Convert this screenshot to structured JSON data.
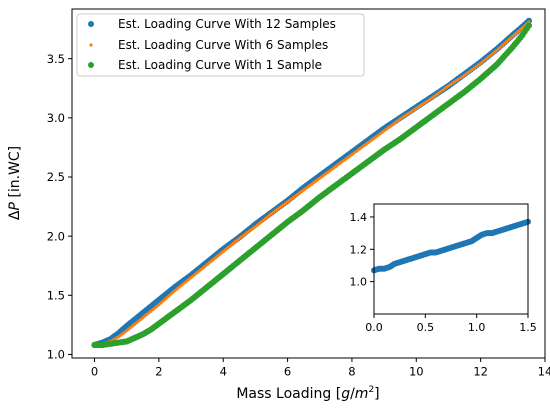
{
  "chart_data": [
    {
      "type": "scatter",
      "title": "",
      "xlabel": "Mass Loading [g/m²]",
      "xlabel_parts": {
        "text": "Mass Loading [",
        "math_g": "g",
        "slash": "/",
        "math_m": "m",
        "sup": "2",
        "close": "]"
      },
      "ylabel": "ΔP [in.WC]",
      "ylabel_parts": {
        "delta": "Δ",
        "math_p": "P",
        "rest": " [in.WC]"
      },
      "xlim": [
        -0.7,
        14.0
      ],
      "ylim": [
        0.97,
        3.92
      ],
      "xticks": [
        0,
        2,
        4,
        6,
        8,
        10,
        12,
        14
      ],
      "yticks": [
        1.0,
        1.5,
        2.0,
        2.5,
        3.0,
        3.5
      ],
      "xtick_labels": [
        "0",
        "2",
        "4",
        "6",
        "8",
        "10",
        "12",
        "14"
      ],
      "ytick_labels": [
        "1.0",
        "1.5",
        "2.0",
        "2.5",
        "3.0",
        "3.5"
      ],
      "grid": false,
      "legend_placement": "top-left",
      "series": [
        {
          "name": "Est. Loading Curve With 12 Samples",
          "color": "#1f77b4",
          "marker_size": "large",
          "x": [
            0,
            0.25,
            0.5,
            0.75,
            1.0,
            1.5,
            2.0,
            2.5,
            3.0,
            3.5,
            4.0,
            4.5,
            5.0,
            5.5,
            6.0,
            6.5,
            7.0,
            7.5,
            8.0,
            8.5,
            9.0,
            9.5,
            10.0,
            10.5,
            11.0,
            11.5,
            12.0,
            12.5,
            13.0,
            13.3,
            13.5
          ],
          "y": [
            1.08,
            1.1,
            1.13,
            1.18,
            1.24,
            1.35,
            1.46,
            1.57,
            1.67,
            1.78,
            1.89,
            1.99,
            2.1,
            2.2,
            2.3,
            2.41,
            2.51,
            2.61,
            2.71,
            2.81,
            2.91,
            3.0,
            3.09,
            3.18,
            3.27,
            3.37,
            3.47,
            3.58,
            3.7,
            3.77,
            3.82
          ]
        },
        {
          "name": "Est. Loading Curve With 6 Samples",
          "color": "#ff7f0e",
          "marker_size": "small",
          "x": [
            0,
            0.25,
            0.5,
            0.75,
            1.0,
            1.5,
            2.0,
            2.5,
            3.0,
            3.5,
            4.0,
            4.5,
            5.0,
            5.5,
            6.0,
            6.5,
            7.0,
            7.5,
            8.0,
            8.5,
            9.0,
            9.5,
            10.0,
            10.5,
            11.0,
            11.5,
            12.0,
            12.5,
            13.0,
            13.3,
            13.5
          ],
          "y": [
            1.08,
            1.09,
            1.11,
            1.15,
            1.2,
            1.31,
            1.42,
            1.54,
            1.65,
            1.76,
            1.87,
            1.98,
            2.08,
            2.19,
            2.29,
            2.39,
            2.49,
            2.59,
            2.69,
            2.79,
            2.89,
            2.99,
            3.08,
            3.17,
            3.27,
            3.36,
            3.46,
            3.57,
            3.69,
            3.76,
            3.81
          ]
        },
        {
          "name": "Est. Loading Curve With 1 Sample",
          "color": "#2ca02c",
          "marker_size": "large",
          "x": [
            0,
            0.25,
            0.5,
            0.75,
            1.0,
            1.25,
            1.5,
            1.75,
            2.0,
            2.25,
            2.5,
            3.0,
            3.5,
            4.0,
            4.5,
            5.0,
            5.5,
            6.0,
            6.5,
            7.0,
            7.5,
            8.0,
            8.5,
            9.0,
            9.5,
            10.0,
            10.5,
            11.0,
            11.5,
            12.0,
            12.5,
            13.0,
            13.3,
            13.5
          ],
          "y": [
            1.08,
            1.08,
            1.09,
            1.1,
            1.11,
            1.14,
            1.17,
            1.21,
            1.26,
            1.31,
            1.36,
            1.46,
            1.57,
            1.68,
            1.79,
            1.9,
            2.01,
            2.12,
            2.22,
            2.33,
            2.43,
            2.53,
            2.63,
            2.73,
            2.82,
            2.92,
            3.02,
            3.12,
            3.22,
            3.33,
            3.45,
            3.6,
            3.7,
            3.78
          ]
        }
      ]
    },
    {
      "type": "scatter",
      "role": "inset",
      "placement": "bottom-right",
      "title": "",
      "xlabel": "",
      "ylabel": "",
      "xlim": [
        0.0,
        1.5
      ],
      "ylim": [
        0.8,
        1.48
      ],
      "xticks": [
        0.0,
        0.5,
        1.0,
        1.5
      ],
      "yticks": [
        1.0,
        1.2,
        1.4
      ],
      "xtick_labels": [
        "0.0",
        "0.5",
        "1.0",
        "1.5"
      ],
      "ytick_labels": [
        "1.0",
        "1.2",
        "1.4"
      ],
      "series": [
        {
          "color": "#1f77b4",
          "x": [
            0.0,
            0.05,
            0.1,
            0.15,
            0.2,
            0.25,
            0.3,
            0.35,
            0.4,
            0.45,
            0.5,
            0.55,
            0.6,
            0.65,
            0.7,
            0.75,
            0.8,
            0.85,
            0.9,
            0.95,
            1.0,
            1.05,
            1.1,
            1.15,
            1.2,
            1.25,
            1.3,
            1.35,
            1.4,
            1.45,
            1.5
          ],
          "y": [
            1.07,
            1.08,
            1.08,
            1.09,
            1.11,
            1.12,
            1.13,
            1.14,
            1.15,
            1.16,
            1.17,
            1.18,
            1.18,
            1.19,
            1.2,
            1.21,
            1.22,
            1.23,
            1.24,
            1.25,
            1.27,
            1.29,
            1.3,
            1.3,
            1.31,
            1.32,
            1.33,
            1.34,
            1.35,
            1.36,
            1.37
          ]
        }
      ]
    }
  ]
}
